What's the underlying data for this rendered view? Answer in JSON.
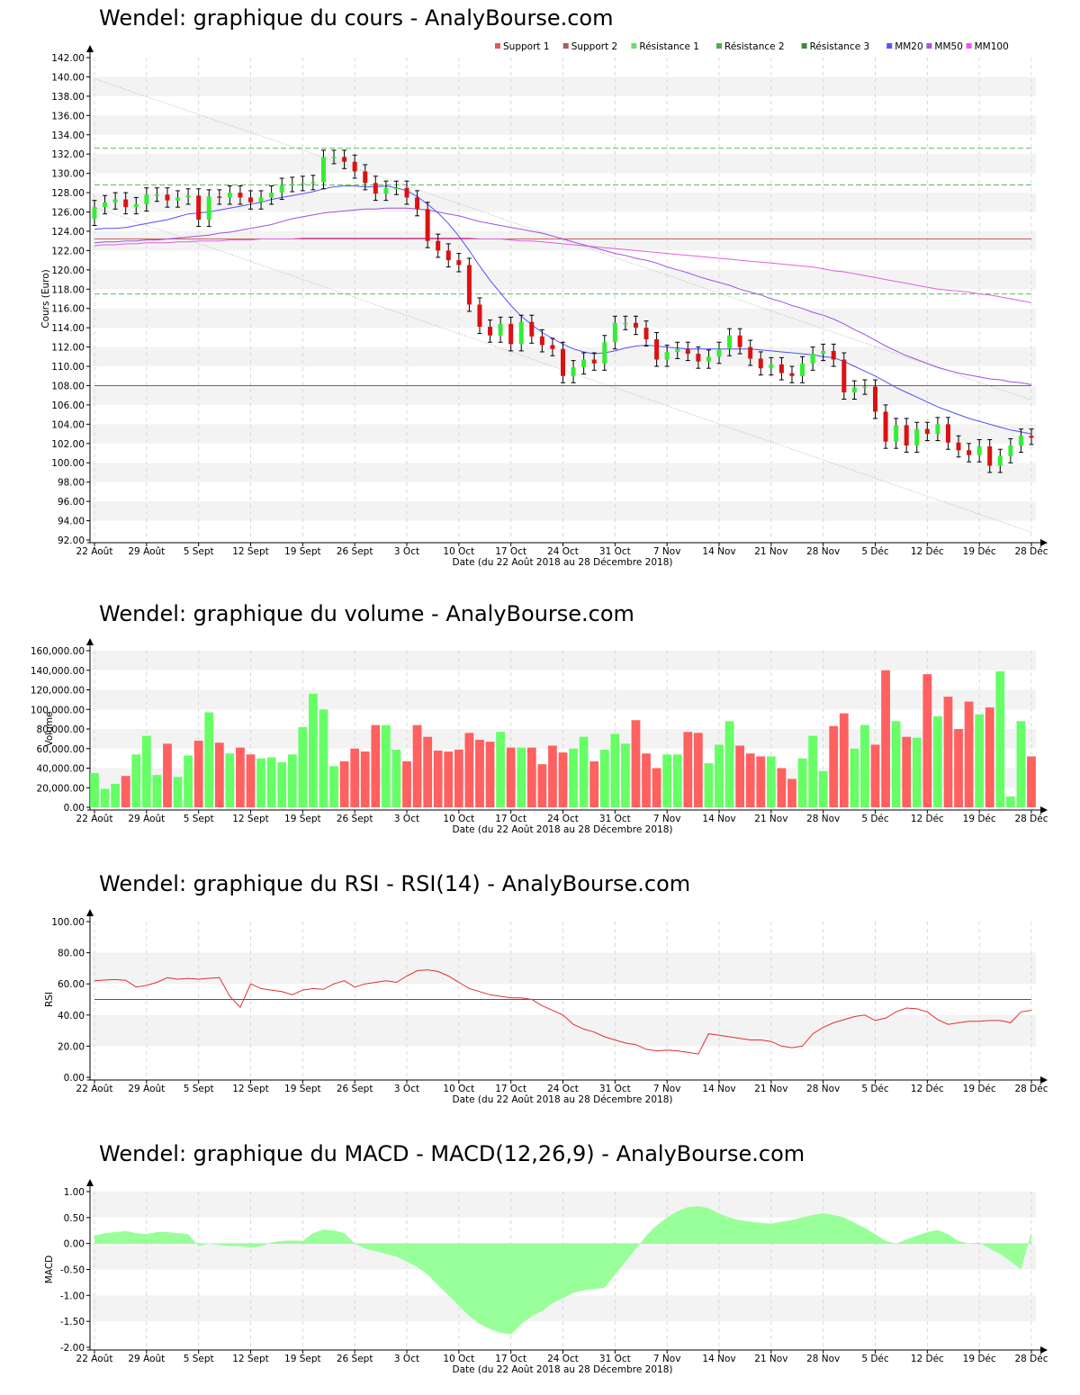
{
  "charts": [
    {
      "id": "price",
      "title": "Wendel: graphique du cours - AnalyBourse.com",
      "type": "candlestick",
      "ylabel": "Cours (Euro)",
      "xlabel": "Date (du 22 Août 2018 au 28 Décembre 2018)",
      "ylim": [
        92,
        142
      ],
      "yticks": [
        "92.00",
        "94.00",
        "96.00",
        "98.00",
        "100.00",
        "102.00",
        "104.00",
        "106.00",
        "108.00",
        "110.00",
        "112.00",
        "114.00",
        "116.00",
        "118.00",
        "120.00",
        "122.00",
        "124.00",
        "126.00",
        "128.00",
        "130.00",
        "132.00",
        "134.00",
        "136.00",
        "138.00",
        "140.00",
        "142.00"
      ],
      "legend": [
        {
          "label": "Support 1",
          "color": "#e05a5a"
        },
        {
          "label": "Support 2",
          "color": "#b05a5a"
        },
        {
          "label": "Résistance 1",
          "color": "#6fdc6f"
        },
        {
          "label": "Résistance 2",
          "color": "#4caf50"
        },
        {
          "label": "Résistance 3",
          "color": "#3a8a3a"
        },
        {
          "label": "MM20",
          "color": "#5555ff"
        },
        {
          "label": "MM50",
          "color": "#aa55dd"
        },
        {
          "label": "MM100",
          "color": "#ee55ee"
        }
      ]
    },
    {
      "id": "volume",
      "title": "Wendel: graphique du volume - AnalyBourse.com",
      "type": "bar",
      "ylabel": "Volume",
      "xlabel": "Date (du 22 Août 2018 au 28 Décembre 2018)",
      "ylim": [
        0,
        160000
      ],
      "yticks": [
        "0.00",
        "20,000.00",
        "40,000.00",
        "60,000.00",
        "80,000.00",
        "100,000.00",
        "120,000.00",
        "140,000.00",
        "160,000.00"
      ]
    },
    {
      "id": "rsi",
      "title": "Wendel: graphique du RSI - RSI(14) - AnalyBourse.com",
      "type": "line",
      "ylabel": "RSI",
      "xlabel": "Date (du 22 Août 2018 au 28 Décembre 2018)",
      "ylim": [
        0,
        100
      ],
      "yticks": [
        "0.00",
        "20.00",
        "40.00",
        "60.00",
        "80.00",
        "100.00"
      ]
    },
    {
      "id": "macd",
      "title": "Wendel: graphique du MACD - MACD(12,26,9) - AnalyBourse.com",
      "type": "area",
      "ylabel": "MACD",
      "xlabel": "Date (du 22 Août 2018 au 28 Décembre 2018)",
      "ylim": [
        -2,
        1
      ],
      "yticks": [
        "-2.00",
        "-1.50",
        "-1.00",
        "-0.50",
        "0.00",
        "0.50",
        "1.00"
      ]
    }
  ],
  "chart_data": {
    "dates": [
      "22 Août",
      "23 Août",
      "24 Août",
      "27 Août",
      "28 Août",
      "29 Août",
      "30 Août",
      "31 Août",
      "3 Sept",
      "4 Sept",
      "5 Sept",
      "6 Sept",
      "7 Sept",
      "10 Sept",
      "11 Sept",
      "12 Sept",
      "13 Sept",
      "14 Sept",
      "17 Sept",
      "18 Sept",
      "19 Sept",
      "20 Sept",
      "21 Sept",
      "24 Sept",
      "25 Sept",
      "26 Sept",
      "27 Sept",
      "28 Sept",
      "1 Oct",
      "2 Oct",
      "3 Oct",
      "4 Oct",
      "5 Oct",
      "8 Oct",
      "9 Oct",
      "10 Oct",
      "11 Oct",
      "12 Oct",
      "15 Oct",
      "16 Oct",
      "17 Oct",
      "18 Oct",
      "19 Oct",
      "22 Oct",
      "23 Oct",
      "24 Oct",
      "25 Oct",
      "26 Oct",
      "29 Oct",
      "30 Oct",
      "31 Oct",
      "1 Nov",
      "2 Nov",
      "5 Nov",
      "6 Nov",
      "7 Nov",
      "8 Nov",
      "9 Nov",
      "12 Nov",
      "13 Nov",
      "14 Nov",
      "15 Nov",
      "16 Nov",
      "19 Nov",
      "20 Nov",
      "21 Nov",
      "22 Nov",
      "23 Nov",
      "26 Nov",
      "27 Nov",
      "28 Nov",
      "29 Nov",
      "30 Nov",
      "3 Déc",
      "4 Déc",
      "5 Déc",
      "6 Déc",
      "7 Déc",
      "10 Déc",
      "11 Déc",
      "12 Déc",
      "13 Déc",
      "14 Déc",
      "17 Déc",
      "18 Déc",
      "19 Déc",
      "20 Déc",
      "21 Déc",
      "24 Déc",
      "27 Déc",
      "28 Déc"
    ],
    "x_tick_labels": [
      {
        "label": "22 Août",
        "index": 0
      },
      {
        "label": "29 Août",
        "index": 5
      },
      {
        "label": "5 Sept",
        "index": 10
      },
      {
        "label": "12 Sept",
        "index": 15
      },
      {
        "label": "19 Sept",
        "index": 20
      },
      {
        "label": "26 Sept",
        "index": 25
      },
      {
        "label": "3 Oct",
        "index": 30
      },
      {
        "label": "10 Oct",
        "index": 35
      },
      {
        "label": "17 Oct",
        "index": 40
      },
      {
        "label": "24 Oct",
        "index": 45
      },
      {
        "label": "31 Oct",
        "index": 50
      },
      {
        "label": "7 Nov",
        "index": 55
      },
      {
        "label": "14 Nov",
        "index": 60
      },
      {
        "label": "21 Nov",
        "index": 65
      },
      {
        "label": "28 Nov",
        "index": 70
      },
      {
        "label": "5 Déc",
        "index": 75
      },
      {
        "label": "12 Déc",
        "index": 80
      },
      {
        "label": "19 Déc",
        "index": 85
      },
      {
        "label": "28 Déc",
        "index": 90
      }
    ],
    "close": [
      126.5,
      127.0,
      127.3,
      126.5,
      126.8,
      127.8,
      127.8,
      127.2,
      127.5,
      127.7,
      125.2,
      127.6,
      127.5,
      128.0,
      127.5,
      127.0,
      127.5,
      128.0,
      128.8,
      128.9,
      129.0,
      129.1,
      131.7,
      131.7,
      131.2,
      130.2,
      129.0,
      127.9,
      128.5,
      128.5,
      127.5,
      126.3,
      123.0,
      122.0,
      121.0,
      120.5,
      116.4,
      114.1,
      113.2,
      114.4,
      112.3,
      114.6,
      113.1,
      112.2,
      111.8,
      109.0,
      109.9,
      110.7,
      110.3,
      112.5,
      114.5,
      114.5,
      114.0,
      112.8,
      110.7,
      111.5,
      111.8,
      111.3,
      110.5,
      111.0,
      111.8,
      113.2,
      112.0,
      110.8,
      109.8,
      110.2,
      109.3,
      109.0,
      110.3,
      111.3,
      111.6,
      110.7,
      107.3,
      107.8,
      107.9,
      105.3,
      102.2,
      103.9,
      101.8,
      103.5,
      103.0,
      104.0,
      102.1,
      101.3,
      100.8,
      101.7,
      99.7,
      100.7,
      101.8,
      102.8,
      102.6
    ],
    "mm20": [
      124.2,
      124.3,
      124.3,
      124.4,
      124.6,
      124.8,
      125.0,
      125.2,
      125.5,
      125.8,
      125.9,
      126.0,
      126.2,
      126.4,
      126.6,
      126.8,
      127.0,
      127.3,
      127.5,
      127.7,
      127.9,
      128.1,
      128.4,
      128.6,
      128.7,
      128.7,
      128.6,
      128.6,
      128.7,
      128.5,
      128.2,
      127.6,
      126.8,
      125.9,
      124.8,
      123.5,
      122.0,
      120.4,
      118.9,
      117.6,
      116.3,
      115.2,
      114.3,
      113.5,
      112.9,
      112.3,
      111.8,
      111.5,
      111.3,
      111.4,
      111.6,
      111.9,
      112.1,
      112.2,
      112.1,
      112.0,
      111.9,
      111.8,
      111.8,
      111.8,
      111.8,
      111.8,
      111.8,
      111.8,
      111.7,
      111.6,
      111.5,
      111.4,
      111.3,
      111.2,
      111.0,
      110.9,
      110.5,
      110.0,
      109.5,
      109.0,
      108.4,
      107.8,
      107.3,
      106.8,
      106.3,
      105.8,
      105.4,
      105.0,
      104.6,
      104.3,
      104.0,
      103.7,
      103.4,
      103.2,
      103.0
    ],
    "mm50": [
      122.8,
      122.9,
      122.9,
      123.0,
      123.0,
      123.1,
      123.1,
      123.2,
      123.3,
      123.4,
      123.5,
      123.6,
      123.8,
      123.9,
      124.1,
      124.3,
      124.5,
      124.7,
      125.0,
      125.3,
      125.5,
      125.7,
      125.9,
      126.0,
      126.1,
      126.2,
      126.3,
      126.3,
      126.4,
      126.4,
      126.4,
      126.3,
      126.2,
      126.0,
      125.8,
      125.6,
      125.3,
      125.0,
      124.8,
      124.6,
      124.4,
      124.2,
      124.0,
      123.8,
      123.5,
      123.2,
      122.9,
      122.6,
      122.3,
      122.0,
      121.7,
      121.5,
      121.2,
      121.0,
      120.7,
      120.3,
      120.0,
      119.7,
      119.3,
      119.0,
      118.7,
      118.4,
      118.0,
      117.7,
      117.4,
      117.0,
      116.7,
      116.3,
      116.0,
      115.6,
      115.3,
      114.9,
      114.4,
      113.8,
      113.3,
      112.7,
      112.1,
      111.6,
      111.1,
      110.7,
      110.3,
      109.9,
      109.6,
      109.3,
      109.1,
      108.9,
      108.7,
      108.6,
      108.4,
      108.3,
      108.1
    ],
    "mm100": [
      122.5,
      122.6,
      122.6,
      122.7,
      122.7,
      122.8,
      122.8,
      122.8,
      122.9,
      122.9,
      123.0,
      123.0,
      123.0,
      123.1,
      123.1,
      123.1,
      123.2,
      123.2,
      123.2,
      123.2,
      123.3,
      123.3,
      123.3,
      123.3,
      123.3,
      123.3,
      123.3,
      123.3,
      123.3,
      123.3,
      123.3,
      123.3,
      123.3,
      123.3,
      123.3,
      123.3,
      123.3,
      123.2,
      123.2,
      123.2,
      123.1,
      123.0,
      123.0,
      122.9,
      122.8,
      122.7,
      122.6,
      122.5,
      122.4,
      122.3,
      122.2,
      122.1,
      122.0,
      121.9,
      121.8,
      121.7,
      121.6,
      121.5,
      121.4,
      121.3,
      121.2,
      121.1,
      121.0,
      120.9,
      120.8,
      120.7,
      120.6,
      120.5,
      120.4,
      120.3,
      120.1,
      119.9,
      119.8,
      119.6,
      119.4,
      119.2,
      119.0,
      118.8,
      118.6,
      118.4,
      118.2,
      118.0,
      117.9,
      117.8,
      117.7,
      117.5,
      117.4,
      117.2,
      117.0,
      116.8,
      116.6
    ],
    "support_levels": [
      123.2,
      108.0
    ],
    "resistance_levels": [
      117.5,
      128.8,
      132.6
    ],
    "trend_channel": {
      "upper": [
        139.8,
        106.5
      ],
      "lower": [
        126.5,
        92.8
      ]
    },
    "volume": [
      35000,
      19000,
      24000,
      32000,
      54000,
      73000,
      33000,
      65000,
      31000,
      53000,
      68000,
      97000,
      66000,
      55000,
      61000,
      54000,
      50000,
      51000,
      46000,
      54000,
      82000,
      116000,
      100000,
      42000,
      47000,
      60000,
      57000,
      84000,
      84000,
      59000,
      47000,
      84000,
      72000,
      58000,
      57000,
      59000,
      76000,
      69000,
      67000,
      77000,
      61000,
      61000,
      61000,
      44000,
      63000,
      56000,
      60000,
      72000,
      47000,
      59000,
      75000,
      65000,
      89000,
      55000,
      40000,
      54000,
      54000,
      77000,
      76000,
      45000,
      64000,
      88000,
      63000,
      55000,
      52000,
      52000,
      40000,
      29000,
      50000,
      73000,
      37000,
      83000,
      96000,
      60000,
      84000,
      64000,
      140000,
      88000,
      72000,
      71000,
      136000,
      93000,
      113000,
      80000,
      108000,
      95000,
      102000,
      139000,
      11000,
      88000,
      52000
    ],
    "rsi": [
      62,
      62.5,
      62.8,
      62.3,
      58,
      59,
      61,
      64,
      63,
      63.5,
      63,
      63.6,
      64,
      52,
      45,
      60,
      57,
      56,
      55,
      53,
      56,
      57,
      56.5,
      60,
      62,
      58,
      60,
      61,
      62,
      61,
      65,
      68.5,
      69,
      68,
      65,
      61,
      57,
      55,
      53,
      52,
      51,
      51,
      50,
      46,
      43,
      40,
      34,
      31,
      29,
      26,
      24,
      22,
      21,
      18,
      17,
      17.5,
      17,
      16,
      15,
      28,
      27,
      26,
      25,
      24,
      24,
      23,
      20,
      19,
      20,
      28,
      32,
      35,
      37,
      39,
      40,
      36.5,
      38,
      42,
      44.5,
      44,
      42,
      37,
      34,
      35,
      36,
      36,
      36.5,
      36.5,
      35,
      42,
      43
    ],
    "rsi_level": 50,
    "macd": [
      0.15,
      0.2,
      0.22,
      0.24,
      0.2,
      0.18,
      0.22,
      0.22,
      0.2,
      0.18,
      -0.05,
      0,
      -0.03,
      -0.05,
      -0.05,
      -0.08,
      -0.05,
      0.02,
      0.05,
      0.06,
      0.05,
      0.2,
      0.27,
      0.25,
      0.2,
      0.0,
      -0.1,
      -0.15,
      -0.2,
      -0.25,
      -0.35,
      -0.45,
      -0.6,
      -0.8,
      -1.0,
      -1.2,
      -1.4,
      -1.55,
      -1.65,
      -1.72,
      -1.75,
      -1.55,
      -1.4,
      -1.3,
      -1.15,
      -1.05,
      -0.95,
      -0.9,
      -0.88,
      -0.85,
      -0.6,
      -0.35,
      -0.1,
      0.15,
      0.35,
      0.5,
      0.62,
      0.7,
      0.72,
      0.68,
      0.58,
      0.5,
      0.45,
      0.42,
      0.4,
      0.38,
      0.42,
      0.45,
      0.5,
      0.55,
      0.58,
      0.55,
      0.5,
      0.4,
      0.3,
      0.18,
      0.05,
      0.0,
      0.08,
      0.15,
      0.22,
      0.26,
      0.18,
      0.05,
      0.0,
      0.02,
      -0.1,
      -0.2,
      -0.35,
      -0.5,
      0.22
    ]
  }
}
